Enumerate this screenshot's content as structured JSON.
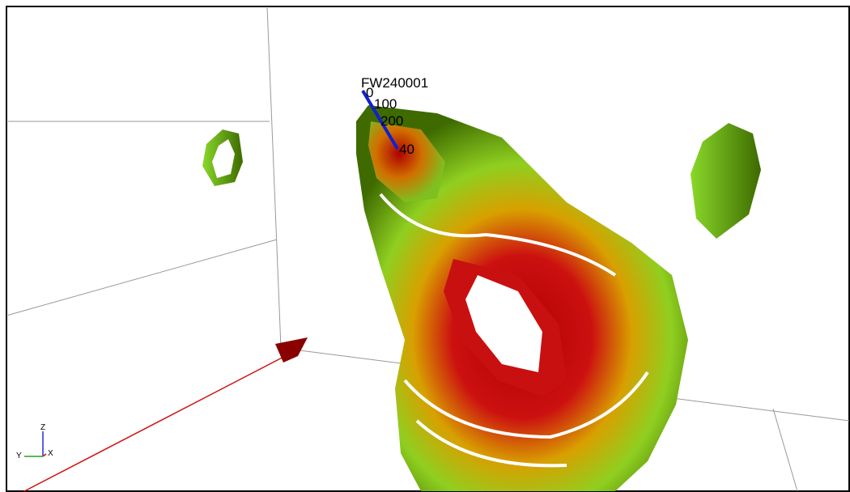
{
  "well": {
    "name": "FW240001",
    "depth_labels": [
      "0",
      "100",
      "200",
      "40"
    ]
  },
  "axis_triad": {
    "z": "Z",
    "y": "Y",
    "x": "X"
  }
}
